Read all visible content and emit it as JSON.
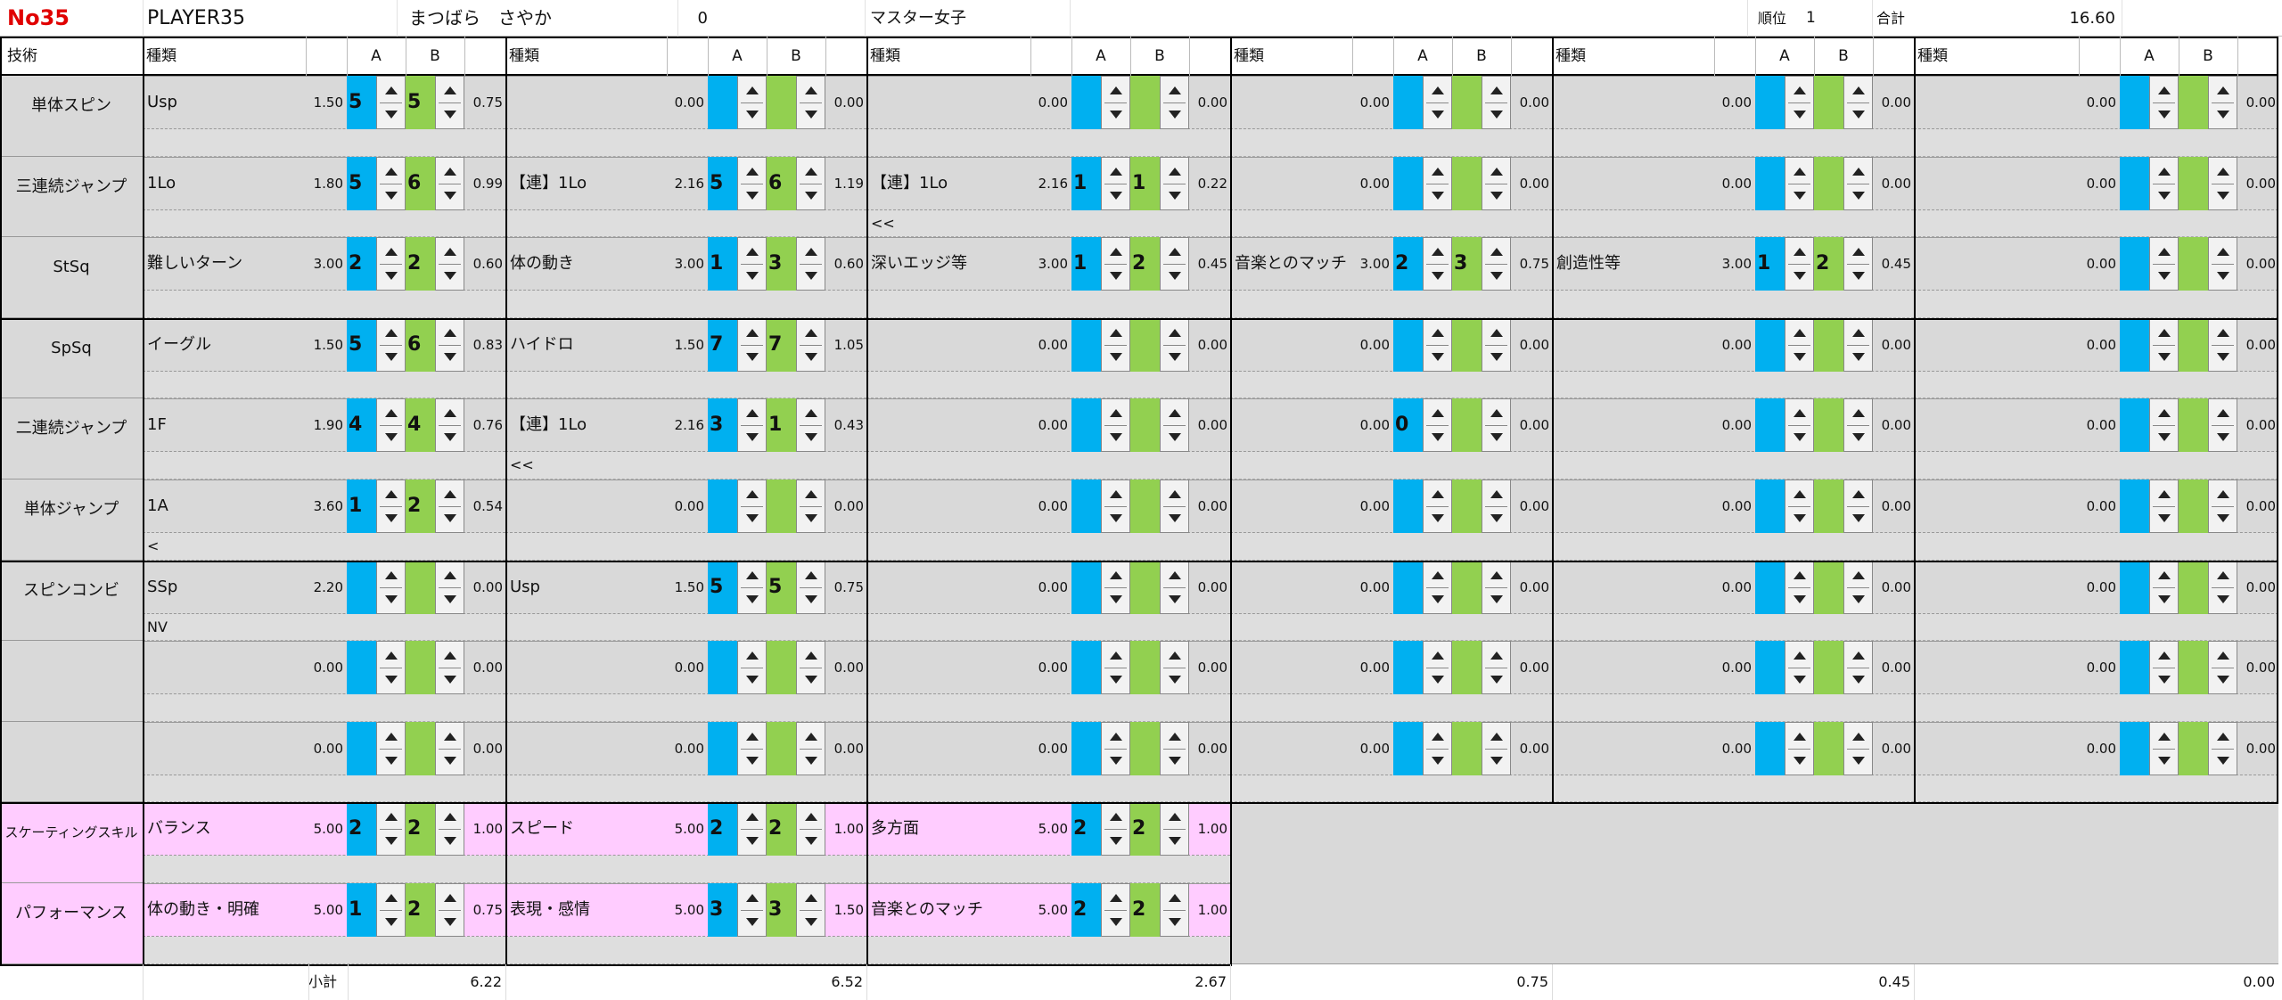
{
  "header": {
    "no": "No35",
    "player": "PLAYER35",
    "name": "まつばら　さやか",
    "entry": "0",
    "category": "マスター女子",
    "rank_label": "順位",
    "rank": "1",
    "total_label": "合計",
    "total": "16.60"
  },
  "columns": {
    "tech": "技術",
    "groups": [
      {
        "type": "種類",
        "a": "A",
        "b": "B"
      },
      {
        "type": "種類",
        "a": "A",
        "b": "B"
      },
      {
        "type": "種類",
        "a": "A",
        "b": "B"
      },
      {
        "type": "種類",
        "a": "A",
        "b": "B"
      },
      {
        "type": "種類",
        "a": "A",
        "b": "B"
      },
      {
        "type": "種類",
        "a": "A",
        "b": "B"
      }
    ]
  },
  "rows": [
    {
      "label": "単体スピン",
      "groups": [
        {
          "type": "Usp",
          "base": "1.50",
          "a": "5",
          "b": "5",
          "score": "0.75"
        },
        {
          "base": "0.00",
          "score": "0.00"
        },
        {
          "base": "0.00",
          "score": "0.00"
        },
        {
          "base": "0.00",
          "score": "0.00"
        },
        {
          "base": "0.00",
          "score": "0.00"
        },
        {
          "base": "0.00",
          "score": "0.00"
        }
      ]
    },
    {
      "label": "三連続ジャンプ",
      "groups": [
        {
          "type": "1Lo",
          "base": "1.80",
          "a": "5",
          "b": "6",
          "score": "0.99"
        },
        {
          "type": "【連】1Lo",
          "base": "2.16",
          "a": "5",
          "b": "6",
          "score": "1.19"
        },
        {
          "type": "【連】1Lo",
          "base": "2.16",
          "a": "1",
          "b": "1",
          "score": "0.22",
          "note": "<<"
        },
        {
          "base": "0.00",
          "score": "0.00"
        },
        {
          "base": "0.00",
          "score": "0.00"
        },
        {
          "base": "0.00",
          "score": "0.00"
        }
      ]
    },
    {
      "label": "StSq",
      "groups": [
        {
          "type": "難しいターン",
          "base": "3.00",
          "a": "2",
          "b": "2",
          "score": "0.60"
        },
        {
          "type": "体の動き",
          "base": "3.00",
          "a": "1",
          "b": "3",
          "score": "0.60"
        },
        {
          "type": "深いエッジ等",
          "base": "3.00",
          "a": "1",
          "b": "2",
          "score": "0.45"
        },
        {
          "type": "音楽とのマッチ",
          "base": "3.00",
          "a": "2",
          "b": "3",
          "score": "0.75"
        },
        {
          "type": "創造性等",
          "base": "3.00",
          "a": "1",
          "b": "2",
          "score": "0.45"
        },
        {
          "base": "0.00",
          "score": "0.00"
        }
      ]
    },
    {
      "label": "SpSq",
      "groups": [
        {
          "type": "イーグル",
          "base": "1.50",
          "a": "5",
          "b": "6",
          "score": "0.83"
        },
        {
          "type": "ハイドロ",
          "base": "1.50",
          "a": "7",
          "b": "7",
          "score": "1.05"
        },
        {
          "base": "0.00",
          "score": "0.00"
        },
        {
          "base": "0.00",
          "score": "0.00"
        },
        {
          "base": "0.00",
          "score": "0.00"
        },
        {
          "base": "0.00",
          "score": "0.00"
        }
      ]
    },
    {
      "label": "二連続ジャンプ",
      "groups": [
        {
          "type": "1F",
          "base": "1.90",
          "a": "4",
          "b": "4",
          "score": "0.76"
        },
        {
          "type": "【連】1Lo",
          "base": "2.16",
          "a": "3",
          "b": "1",
          "score": "0.43",
          "note": "<<"
        },
        {
          "base": "0.00",
          "score": "0.00"
        },
        {
          "base": "0.00",
          "a": "0",
          "score": "0.00"
        },
        {
          "base": "0.00",
          "score": "0.00"
        },
        {
          "base": "0.00",
          "score": "0.00"
        }
      ]
    },
    {
      "label": "単体ジャンプ",
      "groups": [
        {
          "type": "1A",
          "base": "3.60",
          "a": "1",
          "b": "2",
          "score": "0.54",
          "note": "<"
        },
        {
          "base": "0.00",
          "score": "0.00"
        },
        {
          "base": "0.00",
          "score": "0.00"
        },
        {
          "base": "0.00",
          "score": "0.00"
        },
        {
          "base": "0.00",
          "score": "0.00"
        },
        {
          "base": "0.00",
          "score": "0.00"
        }
      ]
    },
    {
      "label": "スピンコンビ",
      "groups": [
        {
          "type": "SSp",
          "base": "2.20",
          "score": "0.00",
          "note": "NV"
        },
        {
          "type": "Usp",
          "base": "1.50",
          "a": "5",
          "b": "5",
          "score": "0.75"
        },
        {
          "base": "0.00",
          "score": "0.00"
        },
        {
          "base": "0.00",
          "score": "0.00"
        },
        {
          "base": "0.00",
          "score": "0.00"
        },
        {
          "base": "0.00",
          "score": "0.00"
        }
      ]
    },
    {
      "groups": [
        {
          "base": "0.00",
          "score": "0.00"
        },
        {
          "base": "0.00",
          "score": "0.00"
        },
        {
          "base": "0.00",
          "score": "0.00"
        },
        {
          "base": "0.00",
          "score": "0.00"
        },
        {
          "base": "0.00",
          "score": "0.00"
        },
        {
          "base": "0.00",
          "score": "0.00"
        }
      ]
    },
    {
      "groups": [
        {
          "base": "0.00",
          "score": "0.00"
        },
        {
          "base": "0.00",
          "score": "0.00"
        },
        {
          "base": "0.00",
          "score": "0.00"
        },
        {
          "base": "0.00",
          "score": "0.00"
        },
        {
          "base": "0.00",
          "score": "0.00"
        },
        {
          "base": "0.00",
          "score": "0.00"
        }
      ]
    },
    {
      "label": "スケーティングスキル",
      "groups": [
        {
          "type": "バランス",
          "base": "5.00",
          "a": "2",
          "b": "2",
          "score": "1.00"
        },
        {
          "type": "スピード",
          "base": "5.00",
          "a": "2",
          "b": "2",
          "score": "1.00"
        },
        {
          "type": "多方面",
          "base": "5.00",
          "a": "2",
          "b": "2",
          "score": "1.00"
        }
      ]
    },
    {
      "label": "パフォーマンス",
      "groups": [
        {
          "type": "体の動き・明確",
          "base": "5.00",
          "a": "1",
          "b": "2",
          "score": "0.75"
        },
        {
          "type": "表現・感情",
          "base": "5.00",
          "a": "3",
          "b": "3",
          "score": "1.50"
        },
        {
          "type": "音楽とのマッチ",
          "base": "5.00",
          "a": "2",
          "b": "2",
          "score": "1.00"
        }
      ]
    }
  ],
  "subtotal": {
    "label": "小計",
    "values": [
      "6.22",
      "6.52",
      "2.67",
      "0.75",
      "0.45",
      "0.00"
    ]
  }
}
